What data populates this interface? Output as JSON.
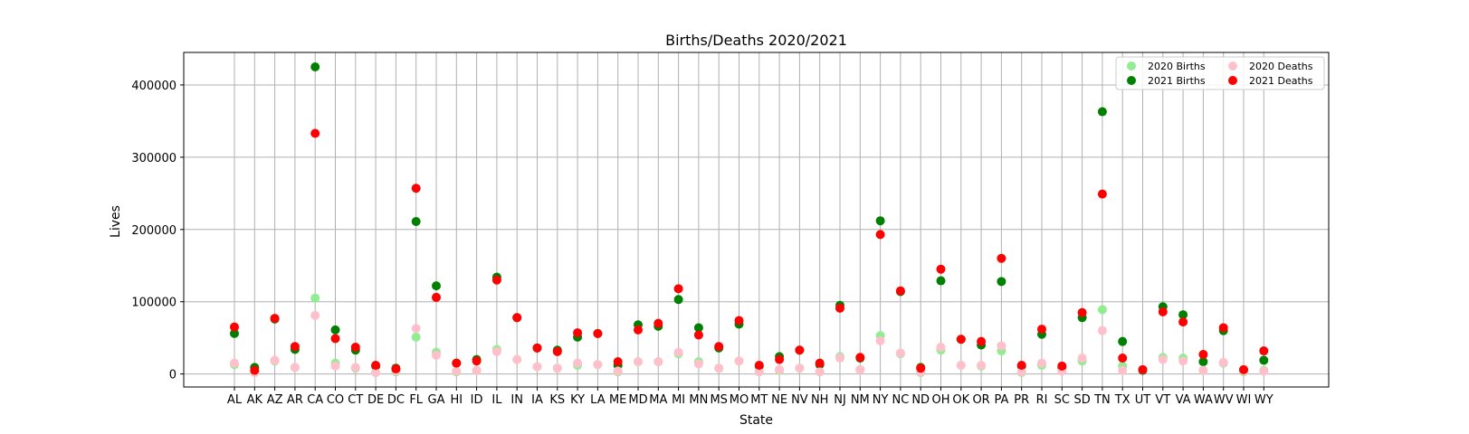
{
  "chart_data": {
    "type": "scatter",
    "title": "Births/Deaths 2020/2021",
    "xlabel": "State",
    "ylabel": "Lives",
    "ylim": [
      -18000,
      445000
    ],
    "yticks": [
      0,
      100000,
      200000,
      300000,
      400000
    ],
    "grid": true,
    "legend_position": "top-right",
    "categories": [
      "AL",
      "AK",
      "AZ",
      "AR",
      "CA",
      "CO",
      "CT",
      "DE",
      "DC",
      "FL",
      "GA",
      "HI",
      "ID",
      "IL",
      "IN",
      "IA",
      "KS",
      "KY",
      "LA",
      "ME",
      "MD",
      "MA",
      "MI",
      "MN",
      "MS",
      "MO",
      "MT",
      "NE",
      "NV",
      "NH",
      "NJ",
      "NM",
      "NY",
      "NC",
      "ND",
      "OH",
      "OK",
      "OR",
      "PA",
      "PR",
      "RI",
      "SC",
      "SD",
      "TN",
      "TX",
      "UT",
      "VT",
      "VA",
      "WA",
      "WV",
      "WI",
      "WY"
    ],
    "series": [
      {
        "name": "2020 Births",
        "color": "#90ee90",
        "values": [
          13000,
          2000,
          18000,
          9000,
          105000,
          15000,
          8000,
          2000,
          3000,
          51000,
          30000,
          3000,
          5000,
          34000,
          20000,
          10000,
          8000,
          12000,
          13000,
          3000,
          17000,
          17000,
          28000,
          17000,
          8000,
          18000,
          3000,
          5000,
          8000,
          3000,
          24000,
          6000,
          53000,
          28000,
          2000,
          33000,
          12000,
          11000,
          32000,
          2000,
          12000,
          5000,
          18000,
          89000,
          11000,
          5000,
          23000,
          22000,
          5000,
          15000,
          3000,
          5000
        ]
      },
      {
        "name": "2021 Births",
        "color": "#008000",
        "values": [
          56000,
          9000,
          76000,
          34000,
          425000,
          61000,
          33000,
          11000,
          8000,
          211000,
          122000,
          15000,
          20000,
          134000,
          78000,
          36000,
          33000,
          51000,
          56000,
          12000,
          68000,
          66000,
          103000,
          64000,
          36000,
          69000,
          11000,
          24000,
          33000,
          13000,
          95000,
          22000,
          212000,
          114000,
          9000,
          129000,
          48000,
          40000,
          128000,
          11000,
          55000,
          9000,
          78000,
          363000,
          45000,
          5000,
          93000,
          82000,
          17000,
          60000,
          5000,
          19000
        ]
      },
      {
        "name": "2020 Deaths",
        "color": "#ffc0cb",
        "values": [
          15000,
          2000,
          19000,
          9000,
          81000,
          11000,
          9000,
          2000,
          4000,
          63000,
          26000,
          4000,
          5000,
          31000,
          20000,
          10000,
          8000,
          15000,
          13000,
          4000,
          17000,
          17000,
          30000,
          14000,
          8000,
          18000,
          3000,
          6000,
          8000,
          3000,
          22000,
          6000,
          46000,
          29000,
          3000,
          37000,
          12000,
          12000,
          39000,
          3000,
          15000,
          4000,
          22000,
          60000,
          5000,
          6000,
          20000,
          18000,
          5000,
          16000,
          4000,
          4000
        ]
      },
      {
        "name": "2021 Deaths",
        "color": "#ff0000",
        "values": [
          65000,
          5000,
          77000,
          38000,
          333000,
          49000,
          37000,
          12000,
          7000,
          257000,
          106000,
          15000,
          18000,
          130000,
          78000,
          36000,
          31000,
          57000,
          56000,
          17000,
          61000,
          70000,
          118000,
          54000,
          38000,
          74000,
          12000,
          20000,
          33000,
          15000,
          91000,
          23000,
          193000,
          115000,
          8000,
          145000,
          48000,
          45000,
          160000,
          12000,
          62000,
          11000,
          85000,
          249000,
          22000,
          6000,
          86000,
          72000,
          27000,
          64000,
          6000,
          32000
        ]
      }
    ]
  }
}
